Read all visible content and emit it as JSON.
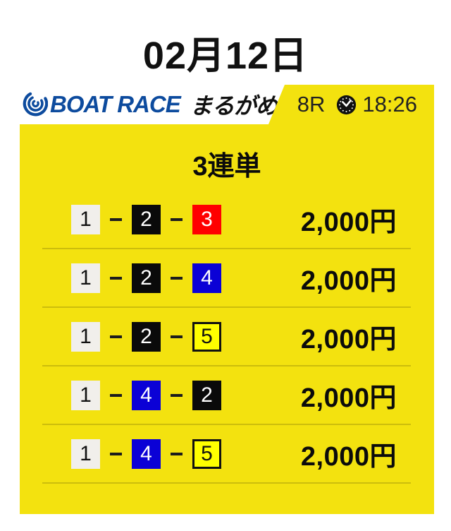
{
  "page": {
    "date_title": "02月12日"
  },
  "header": {
    "brand_name": "BOAT RACE",
    "venue_name": "まるがめ",
    "race_number": "8R",
    "race_time": "18:26",
    "clock_icon": "clock-icon",
    "brand_icon": "boatrace-swirl-icon"
  },
  "ticket": {
    "bet_type": "3連単",
    "rows": [
      {
        "combination": [
          1,
          2,
          3
        ],
        "amount": "2,000円"
      },
      {
        "combination": [
          1,
          2,
          4
        ],
        "amount": "2,000円"
      },
      {
        "combination": [
          1,
          2,
          5
        ],
        "amount": "2,000円"
      },
      {
        "combination": [
          1,
          4,
          2
        ],
        "amount": "2,000円"
      },
      {
        "combination": [
          1,
          4,
          5
        ],
        "amount": "2,000円"
      }
    ]
  },
  "colors": {
    "card_yellow": "#f3e20f",
    "brand_blue": "#0d4b9e",
    "boat_1": "#f1efeb",
    "boat_2": "#0a0a0a",
    "boat_3": "#ff0000",
    "boat_4": "#0b01d6",
    "boat_5": "#ffff00"
  }
}
